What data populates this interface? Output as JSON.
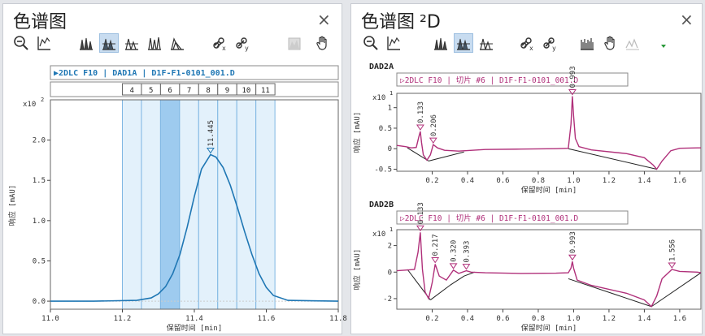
{
  "left_panel": {
    "title": "色谱图",
    "close_glyph": "×",
    "toolbar_icons": [
      "zoom-out-icon",
      "axis-icon",
      "overlay-peaks-icon",
      "stack-peaks-icon",
      "separate-peaks-icon",
      "fan-peaks-icon",
      "offset-peaks-icon",
      "link-x-icon",
      "link-y-icon",
      "fill-area-icon",
      "pan-hand-icon"
    ],
    "signal_header": "▶2DLC F10 | DAD1A | D1F-F1-0101_001.D",
    "fractions": [
      "4",
      "5",
      "6",
      "7",
      "8",
      "9",
      "10",
      "11"
    ],
    "selected_fraction": "6",
    "y_multiplier": "x10",
    "y_multiplier_exp": "2",
    "ylabel": "响应 [mAU]",
    "xlabel": "保留时间 [min]"
  },
  "right_panel": {
    "title": "色谱图",
    "title_suffix": "²D",
    "close_glyph": "×",
    "toolbar_icons": [
      "zoom-out-icon",
      "axis-icon",
      "overlay-peaks-icon",
      "stack-peaks-icon",
      "separate-peaks-icon",
      "link-x-icon",
      "link-y-icon",
      "spectrum-icon",
      "pan-hand-icon",
      "peak-shape-icon",
      "dropdown-arrow-icon"
    ]
  },
  "chart_data": [
    {
      "type": "line",
      "name": "DAD1A",
      "xlim": [
        11.0,
        11.8
      ],
      "ylim": [
        -0.1,
        2.5
      ],
      "xticks": [
        11.0,
        11.2,
        11.4,
        11.6,
        11.8
      ],
      "xtick_labels": [
        "11.0",
        "11.2",
        "11.4",
        "11.6",
        "11.8"
      ],
      "yticks": [
        0.0,
        0.5,
        1.0,
        1.5,
        2.0
      ],
      "ytick_labels": [
        "0.0",
        "0.5",
        "1.0",
        "1.5",
        "2.0"
      ],
      "fraction_bounds": [
        11.2,
        11.253,
        11.306,
        11.359,
        11.412,
        11.465,
        11.518,
        11.571,
        11.624
      ],
      "peak": {
        "apex_x": 11.445,
        "apex_y": 1.82,
        "label": "11.445"
      },
      "x": [
        11.0,
        11.12,
        11.24,
        11.28,
        11.3,
        11.32,
        11.34,
        11.36,
        11.38,
        11.4,
        11.42,
        11.445,
        11.46,
        11.48,
        11.5,
        11.52,
        11.54,
        11.56,
        11.58,
        11.6,
        11.62,
        11.66,
        11.8
      ],
      "y": [
        0.0,
        0.0,
        0.01,
        0.04,
        0.09,
        0.18,
        0.34,
        0.58,
        0.92,
        1.3,
        1.64,
        1.82,
        1.79,
        1.66,
        1.44,
        1.16,
        0.86,
        0.58,
        0.34,
        0.17,
        0.07,
        0.01,
        0.0
      ]
    },
    {
      "type": "line",
      "name": "DAD2A",
      "header": "▷2DLC F10 | 切片 #6 | D1F-F1-0101_001.D",
      "y_multiplier": "x10",
      "y_multiplier_exp": "1",
      "ylabel": "响应 [mAU]",
      "xlabel": "保留时间 [min]",
      "xlim": [
        0.0,
        1.72
      ],
      "ylim": [
        -0.55,
        1.35
      ],
      "xticks": [
        0.2,
        0.4,
        0.6,
        0.8,
        1.0,
        1.2,
        1.4,
        1.6
      ],
      "xtick_labels": [
        "0.2",
        "0.4",
        "0.6",
        "0.8",
        "1.0",
        "1.2",
        "1.4",
        "1.6"
      ],
      "yticks": [
        -0.5,
        0.0,
        0.5,
        1.0
      ],
      "ytick_labels": [
        "-0.5",
        "0",
        "0.5",
        "1"
      ],
      "peaks": [
        {
          "x": 0.133,
          "y": 0.42,
          "label": "0.133"
        },
        {
          "x": 0.206,
          "y": 0.1,
          "label": "0.206"
        },
        {
          "x": 0.993,
          "y": 1.28,
          "label": "0.993"
        }
      ],
      "baselines": [
        [
          0.06,
          0.02,
          0.18,
          -0.3
        ],
        [
          0.18,
          -0.3,
          0.38,
          -0.08
        ],
        [
          0.97,
          0.0,
          1.47,
          -0.5
        ]
      ],
      "x": [
        0.0,
        0.05,
        0.08,
        0.11,
        0.125,
        0.133,
        0.14,
        0.15,
        0.17,
        0.19,
        0.206,
        0.23,
        0.27,
        0.35,
        0.5,
        0.7,
        0.9,
        0.97,
        0.985,
        0.993,
        1.0,
        1.01,
        1.03,
        1.1,
        1.3,
        1.4,
        1.45,
        1.47,
        1.5,
        1.55,
        1.6,
        1.7,
        1.72
      ],
      "y": [
        0.08,
        0.05,
        0.02,
        0.03,
        0.3,
        0.42,
        0.15,
        -0.15,
        -0.28,
        -0.15,
        0.1,
        0.02,
        -0.04,
        -0.06,
        -0.02,
        -0.01,
        0.0,
        0.01,
        0.6,
        1.28,
        0.8,
        0.25,
        0.05,
        -0.03,
        -0.12,
        -0.22,
        -0.4,
        -0.5,
        -0.3,
        -0.05,
        0.01,
        0.02,
        0.02
      ]
    },
    {
      "type": "line",
      "name": "DAD2B",
      "header": "▷2DLC F10 | 切片 #6 | D1F-F1-0101_001.D",
      "y_multiplier": "x10",
      "y_multiplier_exp": "1",
      "ylabel": "响应 [mAU]",
      "xlabel": "保留时间 [min]",
      "xlim": [
        0.0,
        1.72
      ],
      "ylim": [
        -2.8,
        3.2
      ],
      "xticks": [
        0.2,
        0.4,
        0.6,
        0.8,
        1.0,
        1.2,
        1.4,
        1.6
      ],
      "xtick_labels": [
        "0.2",
        "0.4",
        "0.6",
        "0.8",
        "1.0",
        "1.2",
        "1.4",
        "1.6"
      ],
      "yticks": [
        -2,
        0,
        2
      ],
      "ytick_labels": [
        "-2",
        "0",
        "2"
      ],
      "peaks": [
        {
          "x": 0.133,
          "y": 3.0,
          "label": "0.133"
        },
        {
          "x": 0.217,
          "y": 0.6,
          "label": "0.217"
        },
        {
          "x": 0.32,
          "y": 0.15,
          "label": "0.320"
        },
        {
          "x": 0.393,
          "y": 0.1,
          "label": "0.393"
        },
        {
          "x": 0.993,
          "y": 0.8,
          "label": "0.993"
        },
        {
          "x": 1.556,
          "y": 0.2,
          "label": "1.556"
        }
      ],
      "baselines": [
        [
          0.06,
          0.2,
          0.19,
          -2.1
        ],
        [
          0.19,
          -2.1,
          0.3,
          -1.0
        ],
        [
          0.3,
          -1.0,
          0.38,
          -0.3
        ],
        [
          0.38,
          -0.3,
          0.44,
          0.0
        ],
        [
          0.97,
          -0.5,
          1.44,
          -2.6
        ],
        [
          1.44,
          -2.6,
          1.72,
          -0.05
        ]
      ],
      "x": [
        0.0,
        0.05,
        0.1,
        0.12,
        0.133,
        0.145,
        0.16,
        0.18,
        0.2,
        0.217,
        0.24,
        0.28,
        0.32,
        0.35,
        0.393,
        0.42,
        0.5,
        0.7,
        0.9,
        0.97,
        0.985,
        0.993,
        1.0,
        1.02,
        1.1,
        1.3,
        1.4,
        1.44,
        1.47,
        1.5,
        1.556,
        1.6,
        1.7,
        1.72
      ],
      "y": [
        0.1,
        0.15,
        0.2,
        1.5,
        3.0,
        0.2,
        -1.5,
        -2.0,
        -0.8,
        0.6,
        -0.3,
        -0.6,
        0.15,
        -0.1,
        0.1,
        0.0,
        -0.05,
        -0.1,
        -0.08,
        -0.05,
        0.3,
        0.8,
        0.3,
        -0.6,
        -1.0,
        -1.6,
        -2.1,
        -2.6,
        -1.8,
        -0.5,
        0.2,
        0.05,
        0.0,
        -0.05
      ]
    }
  ]
}
